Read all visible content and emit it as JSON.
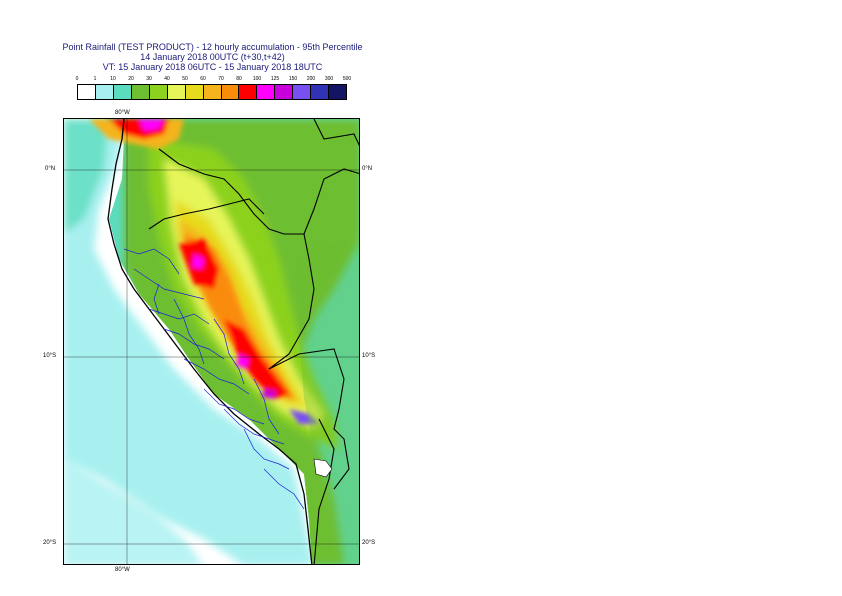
{
  "header": {
    "title": "Point Rainfall (TEST PRODUCT) - 12 hourly accumulation - 95th Percentile",
    "base_time": "14 January 2018 00UTC (t+30,t+42)",
    "valid_time": "VT: 15 January 2018 06UTC - 15 January 2018 18UTC"
  },
  "legend": {
    "thresholds": [
      "0",
      "1",
      "10",
      "20",
      "30",
      "40",
      "50",
      "60",
      "70",
      "80",
      "100",
      "125",
      "150",
      "200",
      "300",
      "500"
    ],
    "colors": [
      "#ffffff",
      "#a8f0f0",
      "#5cdcbe",
      "#6ebe32",
      "#8cd21e",
      "#e6f55a",
      "#e6dc1e",
      "#f5b41e",
      "#fa8c0a",
      "#ff0000",
      "#ff00ff",
      "#c800dc",
      "#7850f0",
      "#3232b4",
      "#141464"
    ]
  },
  "map": {
    "region": "Peru",
    "lat_labels": {
      "top_left": "0°N",
      "top_right": "0°N",
      "mid_left": "10°S",
      "mid_right": "10°S",
      "bottom_left": "20°S",
      "bottom_right": "20°S"
    },
    "lon_labels": {
      "top": "80°W",
      "bottom": "80°W"
    },
    "colors": {
      "sea": "#ffffff",
      "coast": "#000000",
      "borders": "#000000",
      "provinces": "#1e1edc",
      "grid": "#000000"
    }
  }
}
